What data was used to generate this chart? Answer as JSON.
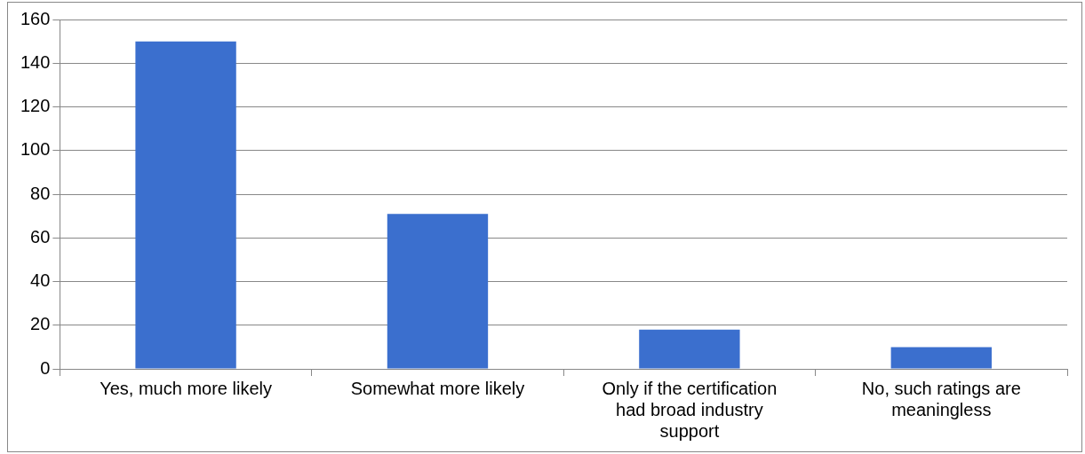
{
  "chart_data": {
    "type": "bar",
    "categories": [
      "Yes, much more likely",
      "Somewhat more likely",
      "Only if the certification had broad industry support",
      "No, such ratings are meaningless"
    ],
    "values": [
      150,
      71,
      18,
      10
    ],
    "color": "#3b6fce",
    "ylim": [
      0,
      160
    ],
    "yticks": [
      0,
      20,
      40,
      60,
      80,
      100,
      120,
      140,
      160
    ],
    "grid": "y",
    "legend": false
  }
}
